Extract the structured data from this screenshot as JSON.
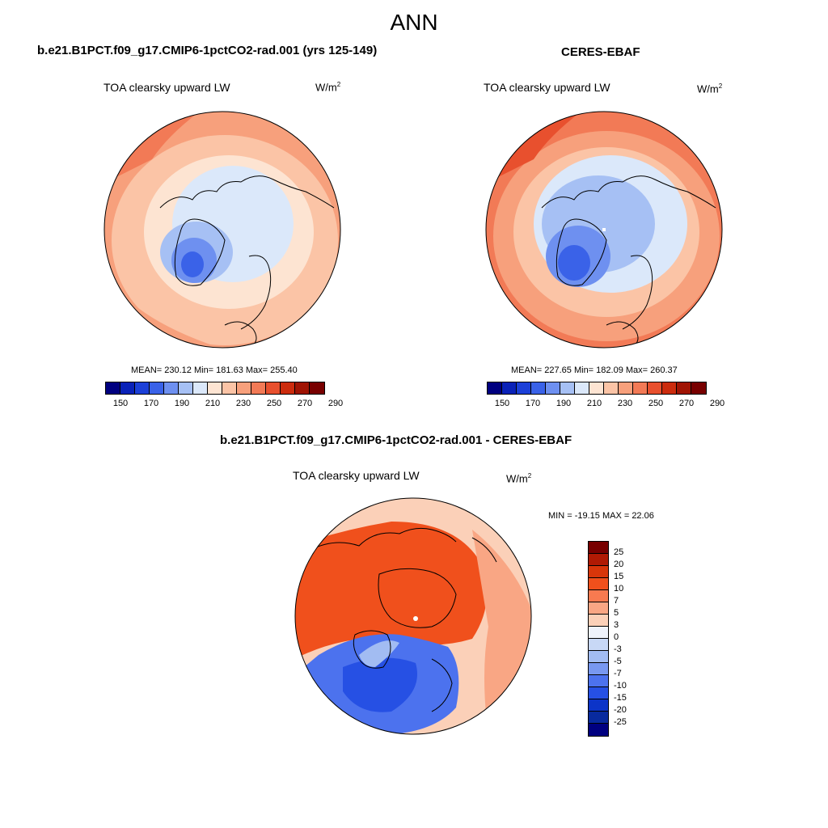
{
  "title": "ANN",
  "panels": [
    {
      "case": "b.e21.B1PCT.f09_g17.CMIP6-1pctCO2-rad.001 (yrs 125-149)",
      "variable": "TOA clearsky upward LW",
      "units": "W/m",
      "units_exp": "2",
      "stats": "MEAN= 230.12  Min= 181.63  Max= 255.40"
    },
    {
      "case": "CERES-EBAF",
      "variable": "TOA clearsky upward LW",
      "units": "W/m",
      "units_exp": "2",
      "stats": "MEAN= 227.65  Min= 182.09  Max= 260.37"
    }
  ],
  "diff_panel": {
    "case": "b.e21.B1PCT.f09_g17.CMIP6-1pctCO2-rad.001 - CERES-EBAF",
    "variable": "TOA clearsky upward LW",
    "units": "W/m",
    "units_exp": "2",
    "stats": "MIN = -19.15 MAX =  22.06"
  },
  "colorbar_abs": {
    "colors": [
      "#000080",
      "#0a22b8",
      "#1c40d8",
      "#3a62e8",
      "#6e90f0",
      "#a6c0f4",
      "#dbe8fa",
      "#fde4d2",
      "#fbc4a6",
      "#f7a07c",
      "#f27a56",
      "#e8502e",
      "#cc2c0e",
      "#a01404",
      "#780000"
    ],
    "labels": [
      "150",
      "170",
      "190",
      "210",
      "230",
      "250",
      "270",
      "290"
    ]
  },
  "colorbar_diff": {
    "colors": [
      "#780000",
      "#b01a04",
      "#d8360a",
      "#f0501c",
      "#f87a50",
      "#f9a684",
      "#fbd0b8",
      "#eef2fb",
      "#c8d8f6",
      "#a2bcf2",
      "#7898f0",
      "#4c72ee",
      "#2650e4",
      "#0c34c8",
      "#082a9e",
      "#000080"
    ],
    "labels": [
      "25",
      "20",
      "15",
      "10",
      "7",
      "5",
      "3",
      "0",
      "-3",
      "-5",
      "-7",
      "-10",
      "-15",
      "-20",
      "-25"
    ]
  }
}
